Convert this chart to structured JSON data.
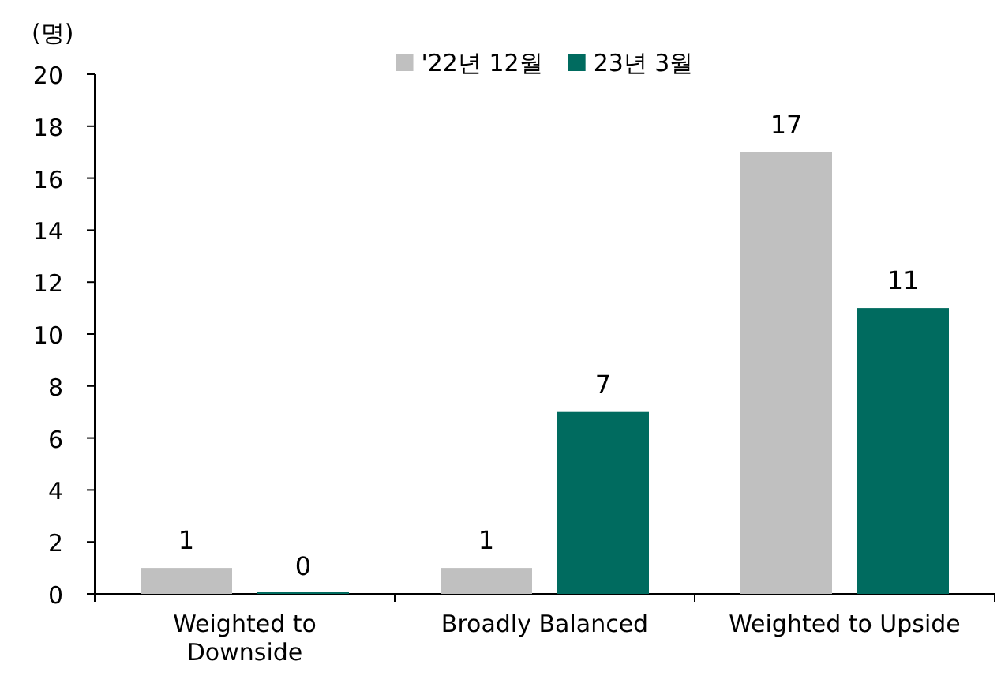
{
  "chart_data": {
    "type": "bar",
    "ylabel": "(명)",
    "categories": [
      "Weighted to Downside",
      "Broadly Balanced",
      "Weighted to Upside"
    ],
    "series": [
      {
        "name": "'22년 12월",
        "color": "#c0c0c0",
        "values": [
          1,
          1,
          17
        ]
      },
      {
        "name": "23년 3월",
        "color": "#006b5f",
        "values": [
          0,
          7,
          11
        ]
      }
    ],
    "ylim": [
      0,
      20
    ],
    "yticks": [
      0,
      2,
      4,
      6,
      8,
      10,
      12,
      14,
      16,
      18,
      20
    ],
    "data_labels": true,
    "legend": "top",
    "grid": false
  }
}
